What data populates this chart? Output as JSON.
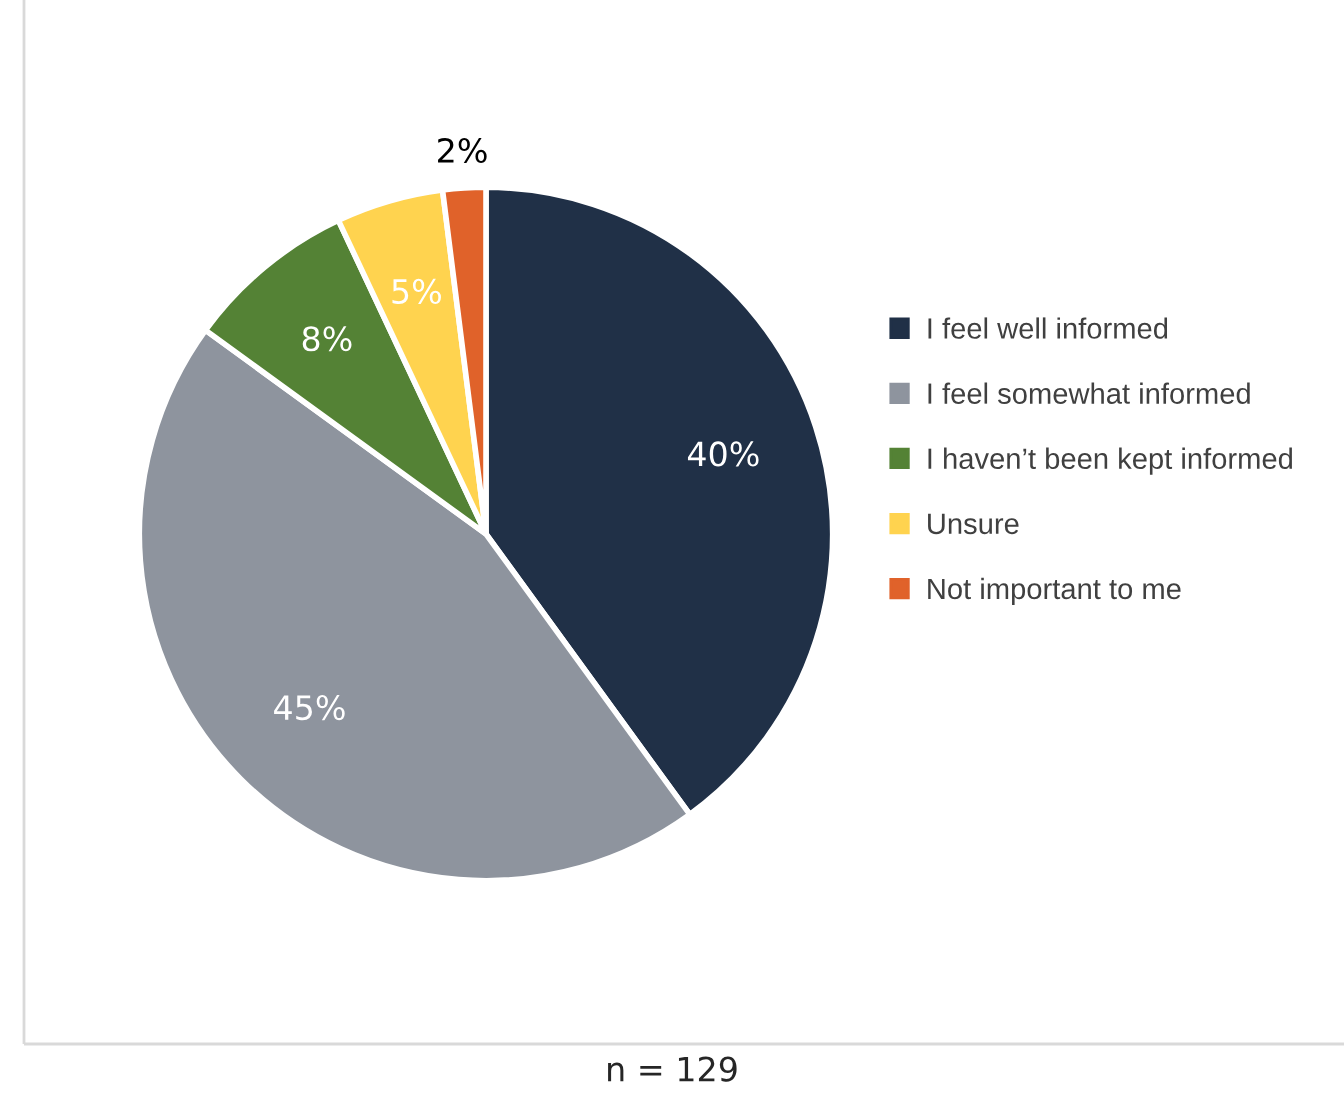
{
  "chart_data": {
    "type": "pie",
    "categories": [
      "I feel well informed",
      "I feel somewhat informed",
      "I haven’t been kept informed",
      "Unsure",
      "Not important to me"
    ],
    "values": [
      40,
      45,
      8,
      5,
      2
    ],
    "colors": [
      "#203047",
      "#8e949e",
      "#548235",
      "#ffd34f",
      "#e0622a"
    ],
    "value_labels": [
      "40%",
      "45%",
      "8%",
      "5%",
      "2%"
    ],
    "legend": "right",
    "annotations": [
      "n = 129"
    ]
  }
}
